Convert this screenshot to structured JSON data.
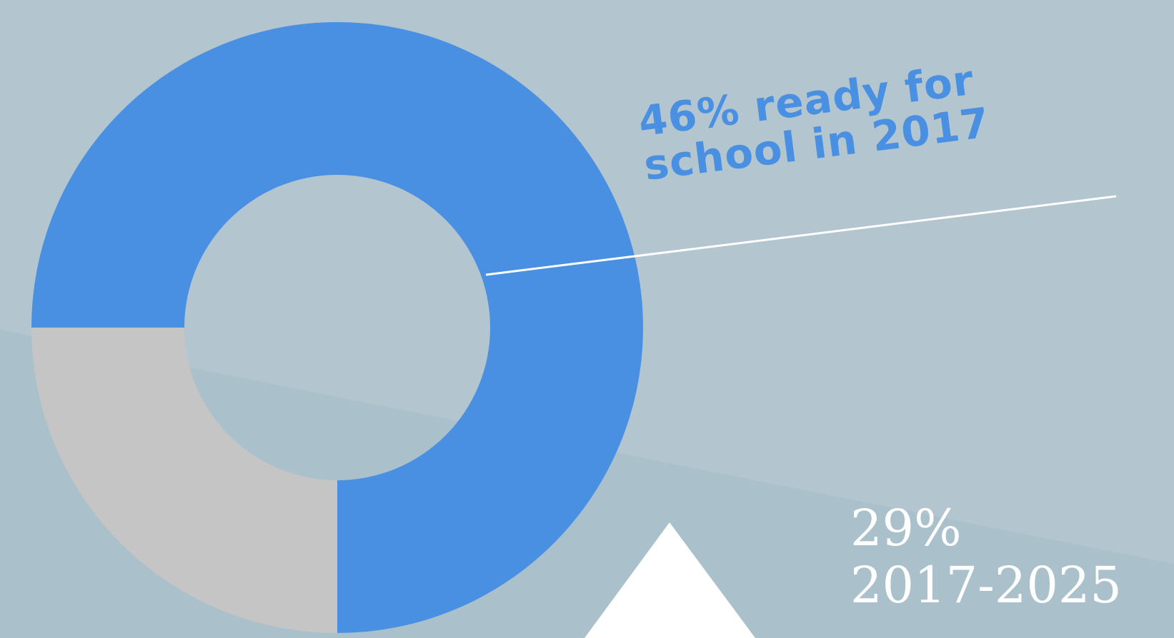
{
  "chart_data": {
    "type": "pie",
    "title": "",
    "slices": [
      {
        "value": 75,
        "color": "#4a90e2"
      },
      {
        "value": 25,
        "color": "#c5c5c5"
      }
    ],
    "annotation": {
      "line1": "46% ready for",
      "line2": "school in 2017"
    },
    "stat": {
      "value": "29%",
      "period": "2017-2025"
    }
  },
  "colors": {
    "background": "#b3c5cf",
    "background_lower": "#aac1cc",
    "accent": "#4a90e2",
    "neutral": "#c5c5c5",
    "stat_text": "#ffffff"
  },
  "icons": [
    "triangle-up-icon"
  ]
}
